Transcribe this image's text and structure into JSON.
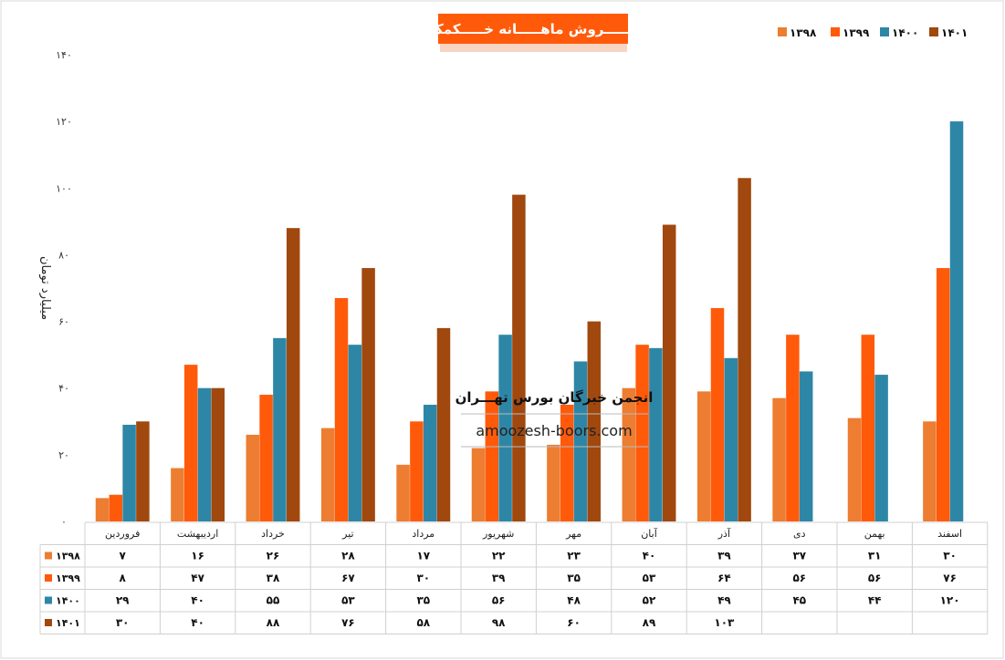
{
  "chart_data": {
    "type": "bar",
    "title": "فـــــروش ماهـــــانه خـــــکمک",
    "ylabel": "میلیارد تومان",
    "ylim": [
      0,
      140
    ],
    "yticks": [
      "۰",
      "۲۰",
      "۴۰",
      "۶۰",
      "۸۰",
      "۱۰۰",
      "۱۲۰",
      "۱۴۰"
    ],
    "yticks_values": [
      0,
      20,
      40,
      60,
      80,
      100,
      120,
      140
    ],
    "legend_position": "top-right",
    "categories": [
      "فروردین",
      "اردیبهشت",
      "خرداد",
      "تیر",
      "مرداد",
      "شهریور",
      "مهر",
      "آبان",
      "آذر",
      "دی",
      "بهمن",
      "اسفند"
    ],
    "series": [
      {
        "name": "۱۳۹۸",
        "color": "#ED7D31",
        "values": [
          7,
          16,
          26,
          28,
          17,
          22,
          23,
          40,
          39,
          37,
          31,
          30
        ],
        "labels": [
          "۷",
          "۱۶",
          "۲۶",
          "۲۸",
          "۱۷",
          "۲۲",
          "۲۳",
          "۴۰",
          "۳۹",
          "۳۷",
          "۳۱",
          "۳۰"
        ]
      },
      {
        "name": "۱۳۹۹",
        "color": "#FF5A0A",
        "values": [
          8,
          47,
          38,
          67,
          30,
          39,
          35,
          53,
          64,
          56,
          56,
          76
        ],
        "labels": [
          "۸",
          "۴۷",
          "۳۸",
          "۶۷",
          "۳۰",
          "۳۹",
          "۳۵",
          "۵۳",
          "۶۴",
          "۵۶",
          "۵۶",
          "۷۶"
        ]
      },
      {
        "name": "۱۴۰۰",
        "color": "#2E86A6",
        "values": [
          29,
          40,
          55,
          53,
          35,
          56,
          48,
          52,
          49,
          45,
          44,
          120
        ],
        "labels": [
          "۲۹",
          "۴۰",
          "۵۵",
          "۵۳",
          "۳۵",
          "۵۶",
          "۴۸",
          "۵۲",
          "۴۹",
          "۴۵",
          "۴۴",
          "۱۲۰"
        ]
      },
      {
        "name": "۱۴۰۱",
        "color": "#A0480E",
        "values": [
          30,
          40,
          88,
          76,
          58,
          98,
          60,
          89,
          103,
          null,
          null,
          null
        ],
        "labels": [
          "۳۰",
          "۴۰",
          "۸۸",
          "۷۶",
          "۵۸",
          "۹۸",
          "۶۰",
          "۸۹",
          "۱۰۳",
          "",
          "",
          ""
        ]
      }
    ]
  },
  "watermark": {
    "name": "انجمن خبرگان بورس تهـــران",
    "url": "amoozesh-boors.com"
  }
}
